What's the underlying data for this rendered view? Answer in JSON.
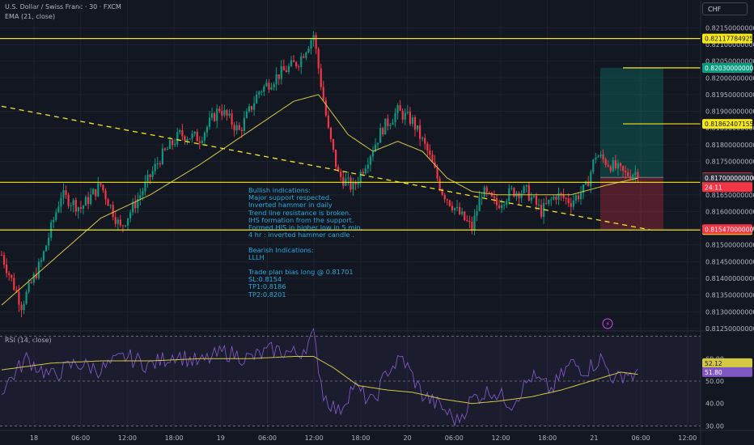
{
  "header": {
    "symbol_line": "U.S. Dollar / Swiss Franc · 30 · FXCM",
    "ema_line": "EMA (21, close)",
    "currency": "CHF"
  },
  "rsi_header": "RSI (14, close)",
  "annotation_lines": [
    "Bullish indications:",
    "Major support respected.",
    "Inverted hammer in daily",
    "Trend line resistance is broken.",
    "IHS formation from the support.",
    "Formed HIS in higher low in 5 min.",
    "4 hr : inverted hammer candle .",
    "",
    "Bearish Indications:",
    "LLLH",
    "",
    "Trade plan bias long @ 0.81701",
    "SL:0.8154",
    "TP1:0.8186",
    "TP2:0.8201"
  ],
  "countdown": "24:11",
  "colors": {
    "background": "#131722",
    "grid": "#1e222d",
    "bull": "#089981",
    "bear": "#f23645",
    "ema": "#d4c843",
    "level": "#f5e71a",
    "rsi": "#7e57c2",
    "annotation": "#2ba8d8"
  },
  "chart_data": [
    {
      "type": "candlestick",
      "title": "U.S. Dollar / Swiss Franc · 30 · FXCM",
      "ylim": [
        0.81245,
        0.82175
      ],
      "y_ticks": [
        "0.81250000000",
        "0.81300000000",
        "0.81350000000",
        "0.81400000000",
        "0.81450000000",
        "0.81500000000",
        "0.81550000000",
        "0.81600000000",
        "0.81650000000",
        "0.81700000000",
        "0.81750000000",
        "0.81800000000",
        "0.81850000000",
        "0.81900000000",
        "0.81950000000",
        "0.82000000000",
        "0.82050000000",
        "0.82100000000",
        "0.82150000000"
      ],
      "x_tick_labels": [
        "18",
        "06:00",
        "12:00",
        "18:00",
        "19",
        "06:00",
        "12:00",
        "18:00",
        "20",
        "06:00",
        "12:00",
        "18:00",
        "21",
        "06:00",
        "12:00"
      ],
      "anchors": [
        [
          0,
          0.8147
        ],
        [
          8,
          0.8132
        ],
        [
          16,
          0.8145
        ],
        [
          24,
          0.8165
        ],
        [
          32,
          0.8161
        ],
        [
          40,
          0.8168
        ],
        [
          48,
          0.8155
        ],
        [
          56,
          0.8165
        ],
        [
          64,
          0.8176
        ],
        [
          72,
          0.8183
        ],
        [
          80,
          0.8182
        ],
        [
          88,
          0.8191
        ],
        [
          96,
          0.8184
        ],
        [
          104,
          0.8196
        ],
        [
          112,
          0.8201
        ],
        [
          120,
          0.8205
        ],
        [
          126,
          0.8213
        ],
        [
          128,
          0.8203
        ],
        [
          132,
          0.8184
        ],
        [
          136,
          0.8171
        ],
        [
          142,
          0.8167
        ],
        [
          148,
          0.8176
        ],
        [
          154,
          0.8185
        ],
        [
          160,
          0.819
        ],
        [
          166,
          0.8187
        ],
        [
          172,
          0.8178
        ],
        [
          178,
          0.8166
        ],
        [
          184,
          0.816
        ],
        [
          190,
          0.8155
        ],
        [
          194,
          0.8166
        ],
        [
          200,
          0.8162
        ],
        [
          206,
          0.8166
        ],
        [
          212,
          0.8166
        ],
        [
          218,
          0.816
        ],
        [
          224,
          0.8165
        ],
        [
          230,
          0.8163
        ],
        [
          236,
          0.8167
        ],
        [
          240,
          0.8177
        ],
        [
          246,
          0.8174
        ],
        [
          252,
          0.8171
        ],
        [
          257,
          0.8172
        ]
      ],
      "ema_anchors": [
        [
          0,
          0.8132
        ],
        [
          20,
          0.8145
        ],
        [
          40,
          0.8158
        ],
        [
          60,
          0.8165
        ],
        [
          80,
          0.8174
        ],
        [
          100,
          0.8184
        ],
        [
          118,
          0.8193
        ],
        [
          128,
          0.8195
        ],
        [
          140,
          0.8183
        ],
        [
          150,
          0.8178
        ],
        [
          160,
          0.8181
        ],
        [
          170,
          0.8178
        ],
        [
          180,
          0.817
        ],
        [
          190,
          0.8166
        ],
        [
          200,
          0.8165
        ],
        [
          215,
          0.8165
        ],
        [
          230,
          0.8165
        ],
        [
          245,
          0.8168
        ],
        [
          257,
          0.817
        ]
      ],
      "horizontal_levels": [
        {
          "value": 0.82117784925,
          "label": "0.82117784925",
          "color": "#f5e71a"
        },
        {
          "value": 0.82029909529,
          "label": "0.82029909529",
          "color": "#f5e71a"
        },
        {
          "value": 0.81862407155,
          "label": "0.81862407155",
          "color": "#f5e71a"
        },
        {
          "value": 0.81687469368,
          "label": "0.81687469368",
          "color": "#f5e71a"
        },
        {
          "value": 0.81544746544,
          "label": "0.81544746544",
          "color": "#f5e71a"
        }
      ],
      "price_labels": [
        {
          "value": 0.8203,
          "label": "0.82030000000",
          "color": "#089981"
        },
        {
          "value": 0.81702,
          "label": "0.81702000000",
          "color": "#f23645"
        },
        {
          "value": 0.817,
          "label": "0.81700000000",
          "color": "#2a2e39"
        },
        {
          "value": 0.81547,
          "label": "0.81547000000",
          "color": "#f23645"
        }
      ],
      "trendline": {
        "from": [
          0,
          0.81915
        ],
        "to": [
          262,
          0.81545
        ]
      },
      "position": {
        "entry": 0.81702,
        "target": 0.8203,
        "stop": 0.81547
      }
    },
    {
      "type": "line",
      "title": "RSI (14, close)",
      "ylim": [
        28,
        72
      ],
      "y_ticks": [
        "30.00",
        "40.00",
        "50.00",
        "60.00"
      ],
      "rsi_anchors": [
        [
          0,
          46
        ],
        [
          10,
          60
        ],
        [
          20,
          52
        ],
        [
          30,
          58
        ],
        [
          40,
          55
        ],
        [
          50,
          61
        ],
        [
          60,
          57
        ],
        [
          70,
          62
        ],
        [
          80,
          58
        ],
        [
          90,
          63
        ],
        [
          100,
          60
        ],
        [
          110,
          64
        ],
        [
          120,
          62
        ],
        [
          126,
          70
        ],
        [
          130,
          44
        ],
        [
          136,
          36
        ],
        [
          142,
          48
        ],
        [
          150,
          40
        ],
        [
          156,
          55
        ],
        [
          162,
          60
        ],
        [
          170,
          44
        ],
        [
          178,
          38
        ],
        [
          184,
          32
        ],
        [
          190,
          42
        ],
        [
          198,
          46
        ],
        [
          206,
          40
        ],
        [
          214,
          52
        ],
        [
          222,
          46
        ],
        [
          230,
          58
        ],
        [
          236,
          55
        ],
        [
          242,
          60
        ],
        [
          248,
          50
        ],
        [
          252,
          54
        ],
        [
          257,
          52
        ]
      ],
      "ma_anchors": [
        [
          0,
          55
        ],
        [
          20,
          58
        ],
        [
          40,
          59
        ],
        [
          60,
          59
        ],
        [
          80,
          60
        ],
        [
          100,
          60
        ],
        [
          118,
          61
        ],
        [
          126,
          61
        ],
        [
          134,
          56
        ],
        [
          144,
          48
        ],
        [
          156,
          46
        ],
        [
          166,
          45
        ],
        [
          178,
          42
        ],
        [
          190,
          40
        ],
        [
          200,
          41
        ],
        [
          214,
          43
        ],
        [
          226,
          46
        ],
        [
          238,
          50
        ],
        [
          250,
          54
        ],
        [
          257,
          53
        ]
      ],
      "current": [
        {
          "value": 52.12,
          "label": "52.12",
          "color": "#d4c843"
        },
        {
          "value": 51.8,
          "label": "51.80",
          "color": "#7e57c2"
        }
      ]
    }
  ]
}
